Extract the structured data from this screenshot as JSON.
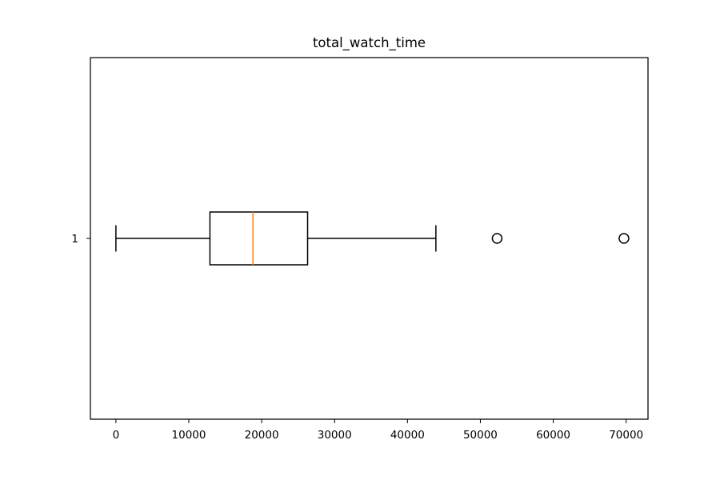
{
  "chart_data": {
    "type": "boxplot",
    "orientation": "horizontal",
    "title": "total_watch_time",
    "xlabel": "",
    "ylabel": "",
    "xlim": [
      -3500,
      73000
    ],
    "x_ticks": [
      0,
      10000,
      20000,
      30000,
      40000,
      50000,
      60000,
      70000
    ],
    "x_tick_labels": [
      "0",
      "10000",
      "20000",
      "30000",
      "40000",
      "50000",
      "60000",
      "70000"
    ],
    "categories": [
      "1"
    ],
    "series": [
      {
        "whisker_low": 0,
        "q1": 12900,
        "median": 18800,
        "q3": 26300,
        "whisker_high": 43900,
        "outliers": [
          52300,
          69700
        ]
      }
    ],
    "grid": false,
    "colors": {
      "box": "#000000",
      "median": "#ff7f0e",
      "outlier_edge": "#000000"
    }
  }
}
